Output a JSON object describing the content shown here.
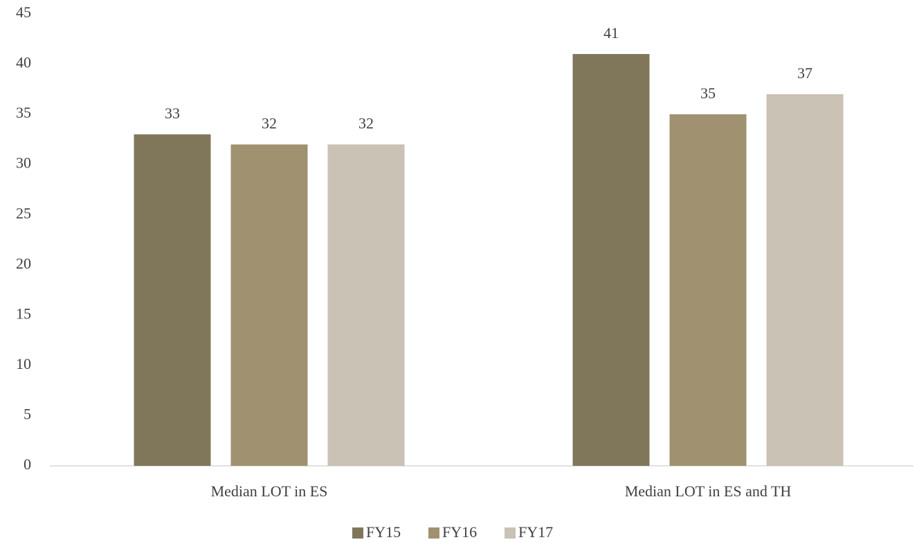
{
  "chart_data": {
    "type": "bar",
    "categories": [
      "Median LOT in ES",
      "Median LOT in ES and TH"
    ],
    "series": [
      {
        "name": "FY15",
        "color": "#80775b",
        "values": [
          33,
          41
        ]
      },
      {
        "name": "FY16",
        "color": "#a09270",
        "values": [
          32,
          35
        ]
      },
      {
        "name": "FY17",
        "color": "#c9c2b5",
        "values": [
          32,
          37
        ]
      }
    ],
    "ylim": [
      0,
      45
    ],
    "yticks": [
      0,
      5,
      10,
      15,
      20,
      25,
      30,
      35,
      40,
      45
    ],
    "grid": false,
    "legend": "bottom"
  }
}
